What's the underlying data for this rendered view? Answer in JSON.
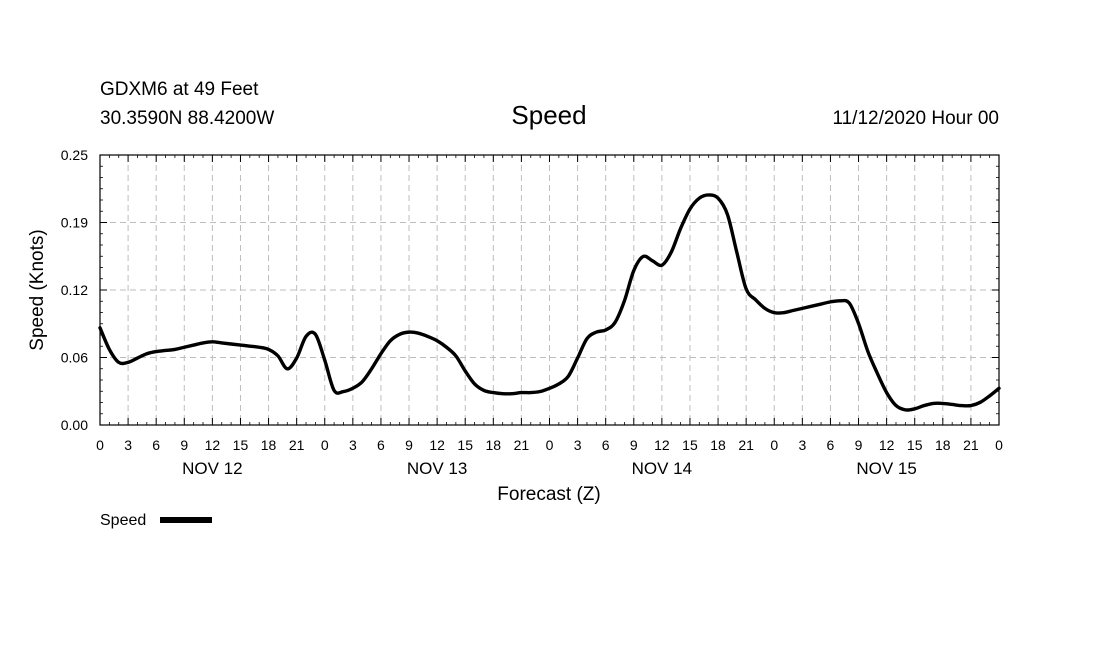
{
  "header": {
    "station": "GDXM6 at 49 Feet",
    "location": "30.3590N 88.4200W",
    "title": "Speed",
    "run": "11/12/2020 Hour 00"
  },
  "chart_data": {
    "type": "line",
    "title": "Speed",
    "xlabel": "Forecast (Z)",
    "ylabel": "Speed (Knots)",
    "ylim": [
      0.0,
      0.25
    ],
    "xlim_hours": [
      0,
      96
    ],
    "y_ticks": [
      "0.00",
      "0.06",
      "0.12",
      "0.19",
      "0.25"
    ],
    "x_tick_labels": [
      "0",
      "3",
      "6",
      "9",
      "12",
      "15",
      "18",
      "21",
      "0",
      "3",
      "6",
      "9",
      "12",
      "15",
      "18",
      "21",
      "0",
      "3",
      "6",
      "9",
      "12",
      "15",
      "18",
      "21",
      "0",
      "3",
      "6",
      "9",
      "12",
      "15",
      "18",
      "21",
      "0"
    ],
    "day_labels": [
      "NOV 12",
      "NOV 13",
      "NOV 14",
      "NOV 15"
    ],
    "grid": true,
    "legend": "bottom-left",
    "line_color": "#000000",
    "series": [
      {
        "name": "Speed",
        "x_hours": [
          0,
          1,
          2,
          3,
          4,
          5,
          6,
          7,
          8,
          9,
          10,
          11,
          12,
          13,
          14,
          15,
          16,
          17,
          18,
          19,
          20,
          21,
          22,
          23,
          24,
          25,
          26,
          27,
          28,
          29,
          30,
          31,
          32,
          33,
          34,
          35,
          36,
          37,
          38,
          39,
          40,
          41,
          42,
          43,
          44,
          45,
          46,
          47,
          48,
          49,
          50,
          51,
          52,
          53,
          54,
          55,
          56,
          57,
          58,
          59,
          60,
          61,
          62,
          63,
          64,
          65,
          66,
          67,
          68,
          69,
          70,
          71,
          72,
          73,
          74,
          75,
          76,
          77,
          78,
          79,
          80,
          81,
          82,
          83,
          84,
          85,
          86,
          87,
          88,
          89,
          90,
          91,
          92,
          93,
          94,
          95,
          96
        ],
        "values": [
          0.09,
          0.07,
          0.058,
          0.058,
          0.062,
          0.066,
          0.068,
          0.069,
          0.07,
          0.072,
          0.074,
          0.076,
          0.077,
          0.076,
          0.075,
          0.074,
          0.073,
          0.072,
          0.07,
          0.064,
          0.052,
          0.062,
          0.082,
          0.084,
          0.06,
          0.032,
          0.031,
          0.034,
          0.04,
          0.052,
          0.066,
          0.078,
          0.084,
          0.086,
          0.085,
          0.082,
          0.078,
          0.072,
          0.064,
          0.05,
          0.038,
          0.032,
          0.03,
          0.029,
          0.029,
          0.03,
          0.03,
          0.031,
          0.034,
          0.038,
          0.045,
          0.062,
          0.08,
          0.086,
          0.088,
          0.095,
          0.115,
          0.143,
          0.156,
          0.152,
          0.148,
          0.16,
          0.182,
          0.2,
          0.21,
          0.213,
          0.21,
          0.195,
          0.16,
          0.126,
          0.116,
          0.108,
          0.104,
          0.104,
          0.106,
          0.108,
          0.11,
          0.112,
          0.114,
          0.115,
          0.113,
          0.094,
          0.068,
          0.048,
          0.03,
          0.018,
          0.014,
          0.015,
          0.018,
          0.02,
          0.02,
          0.019,
          0.018,
          0.018,
          0.021,
          0.027,
          0.034
        ]
      }
    ]
  },
  "legend": {
    "label": "Speed"
  }
}
